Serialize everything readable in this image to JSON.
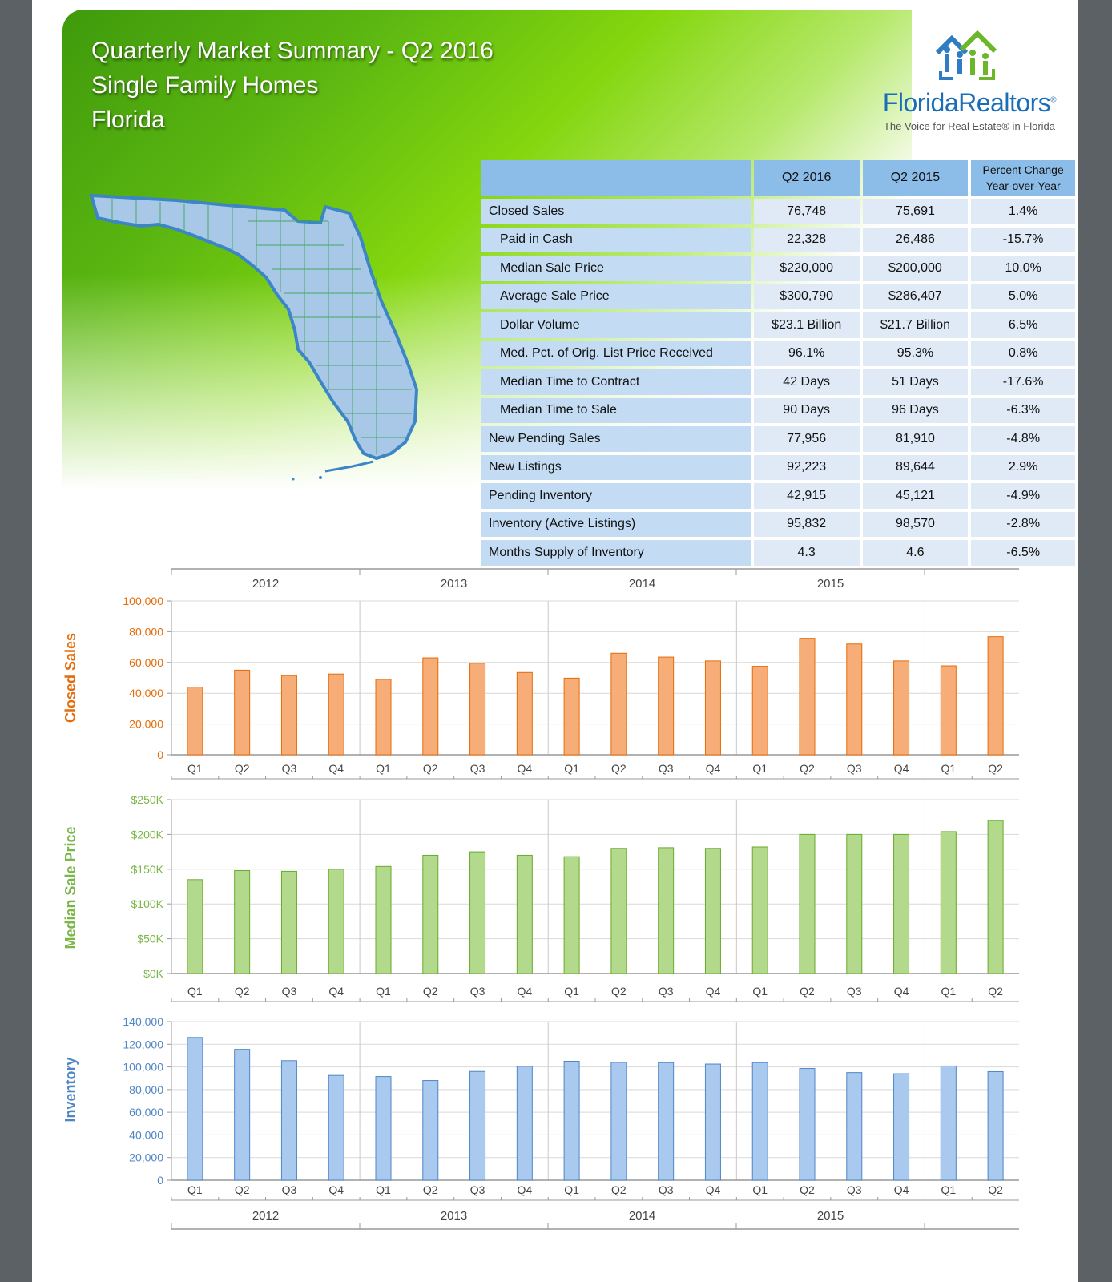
{
  "header": {
    "title_line1": "Quarterly Market Summary - Q2 2016",
    "title_line2": "Single Family Homes",
    "title_line3": "Florida"
  },
  "logo": {
    "name": "FloridaRealtors",
    "registered": "®",
    "tagline": "The Voice for Real Estate® in Florida"
  },
  "colors": {
    "closed_sales": "#f7ad78",
    "closed_sales_stroke": "#e46c0a",
    "closed_sales_label": "#e46c0a",
    "median_price": "#b3d98c",
    "median_price_stroke": "#6aaa2c",
    "median_price_label": "#7ab648",
    "inventory": "#a9c9ee",
    "inventory_stroke": "#4f86c6",
    "inventory_label": "#4f86c6"
  },
  "table": {
    "headers": [
      "",
      "Q2 2016",
      "Q2 2015",
      "Percent Change",
      "Year-over-Year"
    ],
    "rows": [
      {
        "label": "Closed Sales",
        "q2_2016": "76,748",
        "q2_2015": "75,691",
        "change": "1.4%"
      },
      {
        "label": "Paid in Cash",
        "q2_2016": "22,328",
        "q2_2015": "26,486",
        "change": "-15.7%"
      },
      {
        "label": "Median Sale Price",
        "q2_2016": "$220,000",
        "q2_2015": "$200,000",
        "change": "10.0%"
      },
      {
        "label": "Average Sale Price",
        "q2_2016": "$300,790",
        "q2_2015": "$286,407",
        "change": "5.0%"
      },
      {
        "label": "Dollar Volume",
        "q2_2016": "$23.1 Billion",
        "q2_2015": "$21.7 Billion",
        "change": "6.5%"
      },
      {
        "label": "Med. Pct. of Orig. List Price Received",
        "q2_2016": "96.1%",
        "q2_2015": "95.3%",
        "change": "0.8%"
      },
      {
        "label": "Median Time to Contract",
        "q2_2016": "42 Days",
        "q2_2015": "51 Days",
        "change": "-17.6%"
      },
      {
        "label": "Median Time to Sale",
        "q2_2016": "90 Days",
        "q2_2015": "96 Days",
        "change": "-6.3%"
      },
      {
        "label": "New Pending Sales",
        "q2_2016": "77,956",
        "q2_2015": "81,910",
        "change": "-4.8%"
      },
      {
        "label": "New Listings",
        "q2_2016": "92,223",
        "q2_2015": "89,644",
        "change": "2.9%"
      },
      {
        "label": "Pending Inventory",
        "q2_2016": "42,915",
        "q2_2015": "45,121",
        "change": "-4.9%"
      },
      {
        "label": "Inventory (Active Listings)",
        "q2_2016": "95,832",
        "q2_2015": "98,570",
        "change": "-2.8%"
      },
      {
        "label": "Months Supply of Inventory",
        "q2_2016": "4.3",
        "q2_2015": "4.6",
        "change": "-6.5%"
      }
    ]
  },
  "chart_data": [
    {
      "type": "bar",
      "title": "",
      "ylabel": "Closed Sales",
      "years": [
        "2012",
        "2013",
        "2014",
        "2015"
      ],
      "categories": [
        "Q1",
        "Q2",
        "Q3",
        "Q4",
        "Q1",
        "Q2",
        "Q3",
        "Q4",
        "Q1",
        "Q2",
        "Q3",
        "Q4",
        "Q1",
        "Q2",
        "Q3",
        "Q4",
        "Q1",
        "Q2"
      ],
      "values": [
        44000,
        55000,
        51500,
        52500,
        49000,
        63000,
        59500,
        53500,
        49800,
        66000,
        63500,
        61000,
        57500,
        75700,
        72000,
        61000,
        57800,
        76748
      ],
      "ylim": [
        0,
        100000
      ],
      "yticks": [
        0,
        20000,
        40000,
        60000,
        80000,
        100000
      ],
      "ytick_labels": [
        "0",
        "20,000",
        "40,000",
        "60,000",
        "80,000",
        "100,000"
      ]
    },
    {
      "type": "bar",
      "title": "",
      "ylabel": "Median Sale Price",
      "categories": [
        "Q1",
        "Q2",
        "Q3",
        "Q4",
        "Q1",
        "Q2",
        "Q3",
        "Q4",
        "Q1",
        "Q2",
        "Q3",
        "Q4",
        "Q1",
        "Q2",
        "Q3",
        "Q4",
        "Q1",
        "Q2"
      ],
      "values": [
        135000,
        148000,
        147000,
        150000,
        154000,
        170000,
        175000,
        170000,
        168000,
        180000,
        181000,
        180000,
        182000,
        200000,
        200000,
        200000,
        204000,
        220000
      ],
      "ylim": [
        0,
        250000
      ],
      "yticks": [
        0,
        50000,
        100000,
        150000,
        200000,
        250000
      ],
      "ytick_labels": [
        "$0K",
        "$50K",
        "$100K",
        "$150K",
        "$200K",
        "$250K"
      ]
    },
    {
      "type": "bar",
      "title": "",
      "ylabel": "Inventory",
      "years": [
        "2012",
        "2013",
        "2014",
        "2015"
      ],
      "categories": [
        "Q1",
        "Q2",
        "Q3",
        "Q4",
        "Q1",
        "Q2",
        "Q3",
        "Q4",
        "Q1",
        "Q2",
        "Q3",
        "Q4",
        "Q1",
        "Q2",
        "Q3",
        "Q4",
        "Q1",
        "Q2"
      ],
      "values": [
        126000,
        115500,
        105500,
        92500,
        91500,
        88000,
        96000,
        100500,
        105000,
        104000,
        103800,
        102500,
        103800,
        98600,
        95000,
        94000,
        100800,
        95832
      ],
      "ylim": [
        0,
        140000
      ],
      "yticks": [
        0,
        20000,
        40000,
        60000,
        80000,
        100000,
        120000,
        140000
      ],
      "ytick_labels": [
        "0",
        "20,000",
        "40,000",
        "60,000",
        "80,000",
        "100,000",
        "120,000",
        "140,000"
      ]
    }
  ]
}
